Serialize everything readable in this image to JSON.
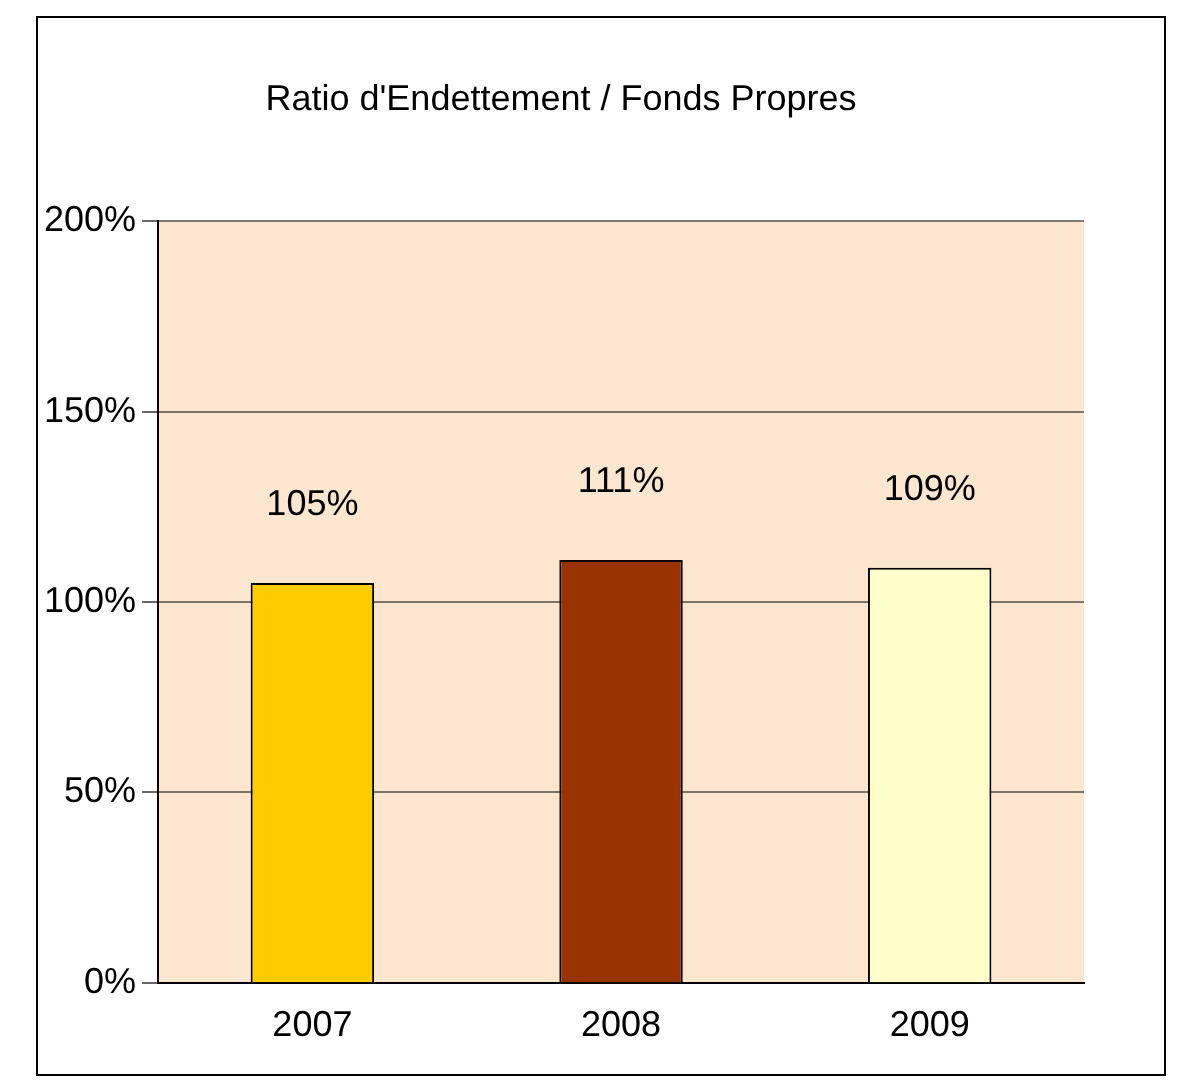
{
  "chart_data": {
    "type": "bar",
    "title": "Ratio d'Endettement / Fonds Propres",
    "categories": [
      "2007",
      "2008",
      "2009"
    ],
    "values": [
      105,
      111,
      109
    ],
    "colors": [
      "#ffcc00",
      "#993300",
      "#ffffcc"
    ],
    "value_labels": [
      "105%",
      "111%",
      "109%"
    ],
    "ylim": [
      0,
      200
    ],
    "yticks": [
      {
        "value": 0,
        "label": "0%"
      },
      {
        "value": 50,
        "label": "50%"
      },
      {
        "value": 100,
        "label": "100%"
      },
      {
        "value": 150,
        "label": "150%"
      },
      {
        "value": 200,
        "label": "200%"
      }
    ],
    "grid": "y",
    "legend": false
  }
}
